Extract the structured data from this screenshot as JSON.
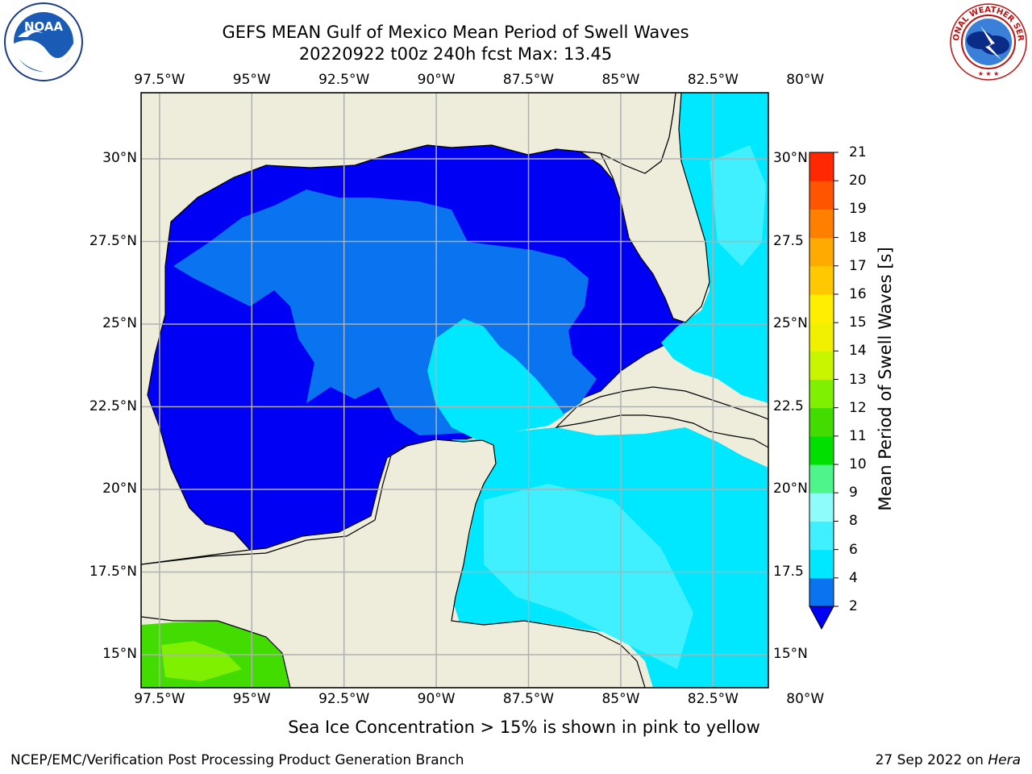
{
  "title": {
    "line1": "GEFS MEAN Gulf of Mexico Mean Period of Swell Waves",
    "line2": "20220922 t00z 240h fcst   Max: 13.45"
  },
  "logos": {
    "left": {
      "icon": "noaa-logo-icon",
      "text": "NOAA"
    },
    "right": {
      "icon": "national-weather-service-logo-icon",
      "text": "NATIONAL WEATHER SERVICE"
    }
  },
  "map": {
    "region": "Gulf of Mexico",
    "lon_range": [
      -98,
      -81
    ],
    "lat_range": [
      14,
      32
    ],
    "lon_labels": [
      {
        "value": -97.5,
        "label": "97.5°W"
      },
      {
        "value": -95,
        "label": "95°W"
      },
      {
        "value": -92.5,
        "label": "92.5°W"
      },
      {
        "value": -90,
        "label": "90°W"
      },
      {
        "value": -87.5,
        "label": "87.5°W"
      },
      {
        "value": -85,
        "label": "85°W"
      },
      {
        "value": -82.5,
        "label": "82.5°W"
      },
      {
        "value": -80,
        "label": "80°W"
      }
    ],
    "lat_labels_left": [
      {
        "value": 30,
        "label": "30°N"
      },
      {
        "value": 27.5,
        "label": "27.5°N"
      },
      {
        "value": 25,
        "label": "25°N"
      },
      {
        "value": 22.5,
        "label": "22.5°N"
      },
      {
        "value": 20,
        "label": "20°N"
      },
      {
        "value": 17.5,
        "label": "17.5°N"
      },
      {
        "value": 15,
        "label": "15°N"
      }
    ],
    "lat_labels_right": [
      {
        "value": 30,
        "label": "30°N"
      },
      {
        "value": 27.5,
        "label": "27.5"
      },
      {
        "value": 25,
        "label": "25°N"
      },
      {
        "value": 22.5,
        "label": "22.5"
      },
      {
        "value": 20,
        "label": "20°N"
      },
      {
        "value": 17.5,
        "label": "17.5"
      },
      {
        "value": 15,
        "label": "15°N"
      }
    ],
    "land_color": "#eeeddc",
    "gridlines": true
  },
  "colorbar": {
    "label": "Mean Period of Swell Waves [s]",
    "ticks": [
      2,
      4,
      6,
      8,
      9,
      10,
      11,
      12,
      13,
      14,
      15,
      16,
      17,
      18,
      19,
      20,
      21
    ],
    "colors": [
      "#0000f5",
      "#0a73f0",
      "#00e8ff",
      "#40f0ff",
      "#8ffcfc",
      "#4ef58a",
      "#00e000",
      "#42dc00",
      "#7ef000",
      "#c8f500",
      "#f0f000",
      "#ffee00",
      "#ffc800",
      "#ffaa00",
      "#ff8000",
      "#ff5500",
      "#ff2800",
      "#ff0000"
    ],
    "extend": "min"
  },
  "note": "Sea Ice Concentration > 15% is shown in pink to yellow",
  "footer": {
    "left": "NCEP/EMC/Verification Post Processing Product Generation Branch",
    "date": "27 Sep 2022 on ",
    "machine": "Hera"
  }
}
